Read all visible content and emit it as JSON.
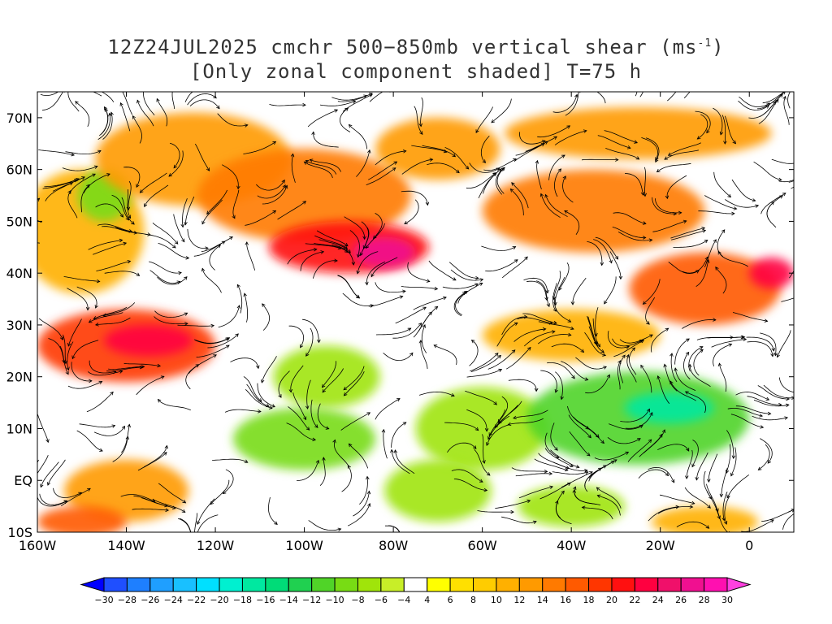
{
  "title": {
    "line1_prefix": "12Z24JUL2025 cmchr 500−850mb vertical shear (ms",
    "line1_sup": "-1",
    "line1_suffix": ")",
    "line2": "[Only zonal component shaded] T=75 h"
  },
  "map": {
    "lon_range": [
      -160,
      10
    ],
    "lat_range": [
      -10,
      75
    ],
    "lon_ticks": [
      {
        "value": -160,
        "label": "160W"
      },
      {
        "value": -140,
        "label": "140W"
      },
      {
        "value": -120,
        "label": "120W"
      },
      {
        "value": -100,
        "label": "100W"
      },
      {
        "value": -80,
        "label": "80W"
      },
      {
        "value": -60,
        "label": "60W"
      },
      {
        "value": -40,
        "label": "40W"
      },
      {
        "value": -20,
        "label": "20W"
      },
      {
        "value": 0,
        "label": "0"
      }
    ],
    "lat_ticks": [
      {
        "value": 70,
        "label": "70N"
      },
      {
        "value": 60,
        "label": "60N"
      },
      {
        "value": 50,
        "label": "50N"
      },
      {
        "value": 40,
        "label": "40N"
      },
      {
        "value": 30,
        "label": "30N"
      },
      {
        "value": 20,
        "label": "20N"
      },
      {
        "value": 10,
        "label": "10N"
      },
      {
        "value": 0,
        "label": "EQ"
      },
      {
        "value": -10,
        "label": "10S"
      }
    ],
    "shear_regions": [
      {
        "lon": -150,
        "lat": 48,
        "rlon": 14,
        "rlat": 12,
        "value": 10
      },
      {
        "lon": -145,
        "lat": 55,
        "rlon": 6,
        "rlat": 5,
        "value": -10
      },
      {
        "lon": -140,
        "lat": 26,
        "rlon": 20,
        "rlat": 7,
        "value": 18
      },
      {
        "lon": -135,
        "lat": 27,
        "rlon": 10,
        "rlat": 3,
        "value": 22
      },
      {
        "lon": -125,
        "lat": 62,
        "rlon": 22,
        "rlat": 9,
        "value": 12
      },
      {
        "lon": -100,
        "lat": 55,
        "rlon": 24,
        "rlat": 9,
        "value": 14
      },
      {
        "lon": -90,
        "lat": 45,
        "rlon": 18,
        "rlat": 5,
        "value": 20
      },
      {
        "lon": -82,
        "lat": 44,
        "rlon": 7,
        "rlat": 3,
        "value": 26
      },
      {
        "lon": -70,
        "lat": 64,
        "rlon": 14,
        "rlat": 6,
        "value": 12
      },
      {
        "lon": -35,
        "lat": 52,
        "rlon": 25,
        "rlat": 8,
        "value": 14
      },
      {
        "lon": -25,
        "lat": 67,
        "rlon": 30,
        "rlat": 5,
        "value": 12
      },
      {
        "lon": -10,
        "lat": 37,
        "rlon": 17,
        "rlat": 7,
        "value": 16
      },
      {
        "lon": 5,
        "lat": 40,
        "rlon": 5,
        "rlat": 3,
        "value": 22
      },
      {
        "lon": -40,
        "lat": 28,
        "rlon": 20,
        "rlat": 5,
        "value": 10
      },
      {
        "lon": -140,
        "lat": -2,
        "rlon": 14,
        "rlat": 6,
        "value": 12
      },
      {
        "lon": -150,
        "lat": -8,
        "rlon": 10,
        "rlat": 3,
        "value": 16
      },
      {
        "lon": -95,
        "lat": 20,
        "rlon": 12,
        "rlat": 6,
        "value": -8
      },
      {
        "lon": -100,
        "lat": 8,
        "rlon": 16,
        "rlat": 6,
        "value": -10
      },
      {
        "lon": -60,
        "lat": 10,
        "rlon": 15,
        "rlat": 8,
        "value": -8
      },
      {
        "lon": -25,
        "lat": 12,
        "rlon": 25,
        "rlat": 9,
        "value": -12
      },
      {
        "lon": -18,
        "lat": 14,
        "rlon": 10,
        "rlat": 3,
        "value": -18
      },
      {
        "lon": -70,
        "lat": -2,
        "rlon": 12,
        "rlat": 6,
        "value": -8
      },
      {
        "lon": -40,
        "lat": -5,
        "rlon": 12,
        "rlat": 4,
        "value": -8
      },
      {
        "lon": -10,
        "lat": -8,
        "rlon": 12,
        "rlat": 3,
        "value": 10
      }
    ]
  },
  "colorbar": {
    "levels": [
      -30,
      -28,
      -26,
      -24,
      -22,
      -20,
      -18,
      -16,
      -14,
      -12,
      -10,
      -8,
      -6,
      -4,
      4,
      6,
      8,
      10,
      12,
      14,
      16,
      18,
      20,
      22,
      24,
      26,
      28,
      30
    ],
    "colors": [
      "#0000ff",
      "#1f4fff",
      "#1e7fff",
      "#1f9fff",
      "#19c0ff",
      "#00e0ff",
      "#00f0d0",
      "#00e8a0",
      "#00dc78",
      "#20d050",
      "#50d428",
      "#78dc14",
      "#a0e40a",
      "#c8ee28",
      "#ffffff",
      "#ffff00",
      "#ffe000",
      "#ffcc00",
      "#ffb000",
      "#ff9a00",
      "#ff7a00",
      "#ff5a00",
      "#ff3600",
      "#ff1010",
      "#ff0040",
      "#f0106a",
      "#f01090",
      "#ff10b0",
      "#ff40e0"
    ],
    "labels": [
      "−30",
      "−28",
      "−26",
      "−24",
      "−22",
      "−20",
      "−18",
      "−16",
      "−14",
      "−12",
      "−10",
      "−8",
      "−6",
      "−4",
      "4",
      "6",
      "8",
      "10",
      "12",
      "14",
      "16",
      "18",
      "20",
      "22",
      "24",
      "26",
      "28",
      "30"
    ]
  }
}
